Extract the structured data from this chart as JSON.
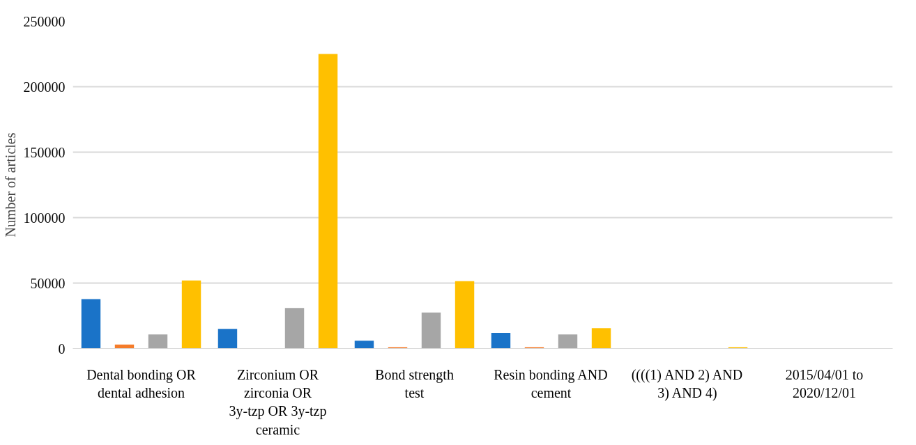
{
  "chart_data": {
    "type": "bar",
    "ylabel": "Number of articles",
    "categories": [
      "Dental bonding OR dental adhesion",
      "Zirconium OR zirconia OR 3y-tzp OR 3y-tzp ceramic",
      "Bond strength test",
      "Resin bonding AND cement",
      "((((1) AND 2) AND 3) AND 4)",
      "2015/04/01 to 2020/12/01"
    ],
    "series": [
      {
        "color": "#1a73c8",
        "values": [
          37700,
          15000,
          6000,
          12000,
          0,
          0
        ]
      },
      {
        "color": "#f57c2a",
        "values": [
          3000,
          0,
          1000,
          1000,
          0,
          0
        ]
      },
      {
        "color": "#a6a6a6",
        "values": [
          10800,
          31000,
          27500,
          10800,
          0,
          0
        ]
      },
      {
        "color": "#ffc000",
        "values": [
          52000,
          225000,
          51500,
          15500,
          1000,
          0
        ]
      }
    ],
    "ylim": [
      0,
      250000
    ],
    "yticks": [
      0,
      50000,
      100000,
      150000,
      200000,
      250000
    ],
    "grid": "y"
  }
}
